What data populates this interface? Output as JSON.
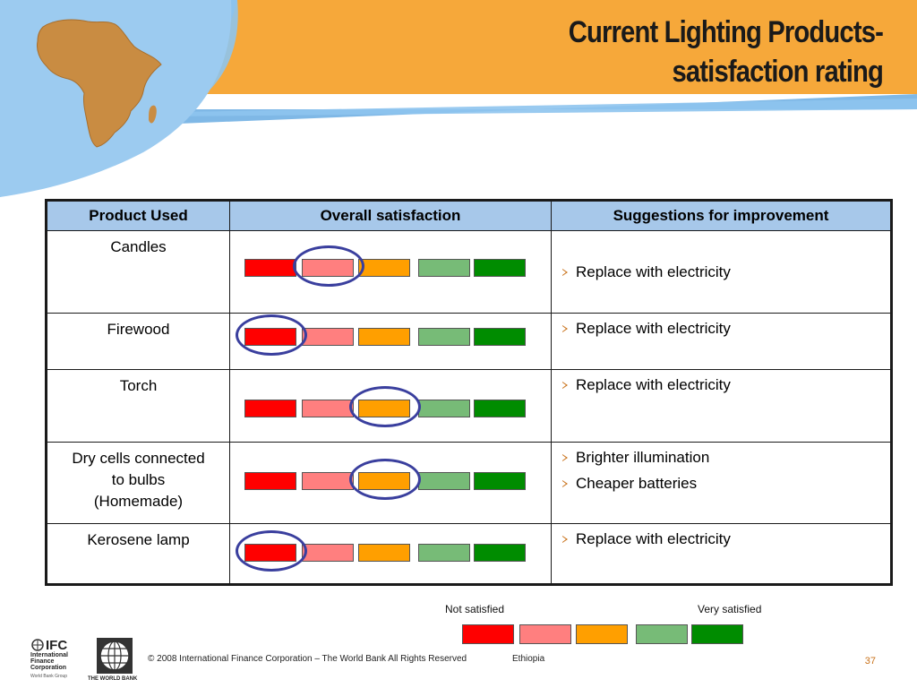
{
  "title": {
    "line1": "Current Lighting Products-",
    "line2": "satisfaction rating"
  },
  "colors": {
    "header_orange": "#f6a83a",
    "header_blue": "#7fb8e6",
    "africa": "#c98c42",
    "scale": [
      "#ff0000",
      "#ff7f7f",
      "#ff9f00",
      "#77bb77",
      "#008c00"
    ],
    "highlight_circle": "#3a3f9e",
    "table_header": "#a7c8ea"
  },
  "table": {
    "headers": {
      "product": "Product Used",
      "satisfaction": "Overall satisfaction",
      "suggestions": "Suggestions for improvement"
    },
    "rows": [
      {
        "product": [
          "Candles"
        ],
        "rating_index": 1,
        "suggestions": [
          "Replace with electricity"
        ]
      },
      {
        "product": [
          "Firewood"
        ],
        "rating_index": 0,
        "suggestions": [
          "Replace with electricity"
        ]
      },
      {
        "product": [
          "Torch"
        ],
        "rating_index": 2,
        "suggestions": [
          "Replace with electricity"
        ]
      },
      {
        "product": [
          "Dry cells connected",
          "to bulbs",
          "(Homemade)"
        ],
        "rating_index": 2,
        "suggestions": [
          "Brighter illumination",
          "Cheaper batteries"
        ]
      },
      {
        "product": [
          "Kerosene lamp"
        ],
        "rating_index": 0,
        "suggestions": [
          "Replace with electricity"
        ]
      }
    ]
  },
  "legend": {
    "low": "Not satisfied",
    "high": "Very satisfied"
  },
  "footer": {
    "copyright": "© 2008 International Finance Corporation – The World Bank All Rights Reserved",
    "country": "Ethiopia",
    "page": "37",
    "ifc_logo": "IFC",
    "ifc_name": [
      "International",
      "Finance",
      "Corporation"
    ],
    "ifc_sub": "World Bank Group",
    "wb_name": "THE WORLD BANK"
  }
}
